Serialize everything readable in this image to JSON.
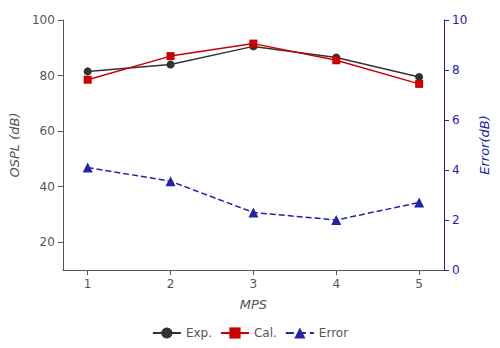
{
  "chart_data": {
    "type": "line",
    "x": [
      1,
      2,
      3,
      4,
      5
    ],
    "xlabel": "MPS",
    "ylabel": "OSPL (dB)",
    "y2label": "Error(dB)",
    "xlim": [
      0.7,
      5.3
    ],
    "xticks": [
      1,
      2,
      3,
      4,
      5
    ],
    "ylim": [
      10,
      100
    ],
    "yticks": [
      20,
      40,
      60,
      80,
      100
    ],
    "y2lim": [
      0,
      10
    ],
    "y2ticks": [
      0,
      2,
      4,
      6,
      8,
      10
    ],
    "grid": false,
    "legend": "bottom",
    "series": [
      {
        "name": "Exp.",
        "color": "#333333",
        "marker": "circle",
        "line_style": "solid",
        "values": [
          81.5,
          84.0,
          90.5,
          86.5,
          79.5
        ]
      },
      {
        "name": "Cal.",
        "color": "#cc0000",
        "marker": "square",
        "line_style": "solid",
        "values": [
          78.5,
          87.0,
          91.5,
          85.5,
          77.0
        ]
      },
      {
        "name": "Error",
        "color": "#2222aa",
        "marker": "triangle",
        "line_style": "dashed",
        "axis": "y2",
        "values": [
          4.1,
          3.55,
          2.3,
          2.0,
          2.7
        ]
      }
    ]
  }
}
